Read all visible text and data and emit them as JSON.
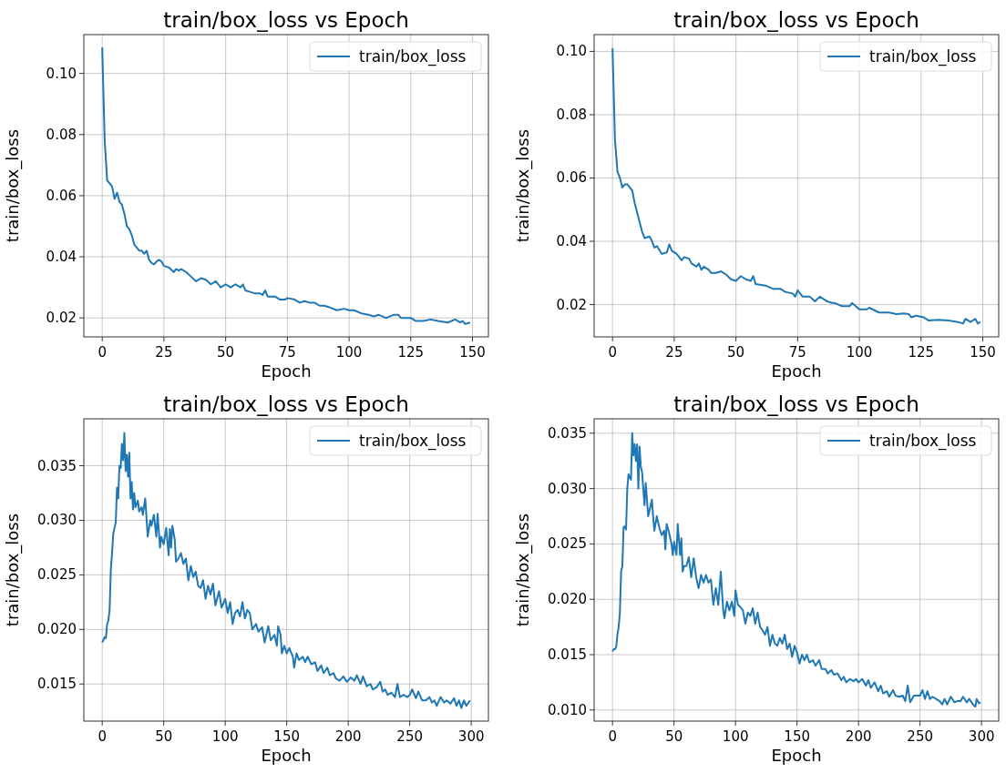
{
  "chart_data": [
    {
      "type": "line",
      "title": "train/box_loss vs Epoch",
      "xlabel": "Epoch",
      "ylabel": "train/box_loss",
      "grid": true,
      "legend": "top right",
      "xlim": [
        -7.45,
        156.45
      ],
      "ylim": [
        0.0138,
        0.1127
      ],
      "xticks": [
        0,
        25,
        50,
        75,
        100,
        125,
        150
      ],
      "yticks": [
        0.02,
        0.04,
        0.06,
        0.08,
        {
          "value": 0.1,
          "label": "0.10"
        }
      ],
      "x": [
        0,
        1,
        2,
        3,
        4,
        5,
        6,
        7,
        8,
        9,
        10,
        11,
        12,
        13,
        14,
        15,
        16,
        17,
        18,
        19,
        20,
        21,
        22,
        23,
        24,
        25,
        27,
        29,
        30,
        31,
        32,
        34,
        36,
        38,
        40,
        42,
        44,
        46,
        48,
        50,
        52,
        54,
        56,
        57,
        58,
        60,
        62,
        64,
        65,
        66,
        67,
        70,
        72,
        74,
        75,
        78,
        80,
        82,
        84,
        86,
        88,
        90,
        92,
        95,
        98,
        100,
        102,
        105,
        108,
        110,
        112,
        115,
        118,
        120,
        121,
        125,
        127,
        130,
        133,
        136,
        140,
        143,
        145,
        146,
        147,
        149
      ],
      "series": [
        {
          "name": "train/box_loss",
          "color": "#1f77b4",
          "values": [
            0.1085,
            0.078,
            0.065,
            0.064,
            0.063,
            0.059,
            0.061,
            0.058,
            0.057,
            0.054,
            0.05,
            0.049,
            0.047,
            0.044,
            0.043,
            0.042,
            0.042,
            0.041,
            0.042,
            0.039,
            0.038,
            0.0375,
            0.0385,
            0.039,
            0.0385,
            0.037,
            0.0365,
            0.035,
            0.036,
            0.0355,
            0.036,
            0.035,
            0.0335,
            0.032,
            0.033,
            0.0325,
            0.031,
            0.032,
            0.03,
            0.031,
            0.03,
            0.031,
            0.03,
            0.031,
            0.029,
            0.0285,
            0.028,
            0.028,
            0.0275,
            0.029,
            0.027,
            0.027,
            0.026,
            0.026,
            0.0265,
            0.026,
            0.025,
            0.0255,
            0.025,
            0.025,
            0.024,
            0.024,
            0.0235,
            0.0225,
            0.023,
            0.0225,
            0.0225,
            0.0215,
            0.021,
            0.0205,
            0.021,
            0.02,
            0.021,
            0.021,
            0.02,
            0.02,
            0.019,
            0.019,
            0.0195,
            0.019,
            0.0185,
            0.0195,
            0.0185,
            0.019,
            0.018,
            0.0185
          ]
        }
      ]
    },
    {
      "type": "line",
      "title": "train/box_loss vs Epoch",
      "xlabel": "Epoch",
      "ylabel": "train/box_loss",
      "grid": true,
      "legend": "top right",
      "xlim": [
        -7.45,
        156.45
      ],
      "ylim": [
        0.0098,
        0.1053
      ],
      "xticks": [
        0,
        25,
        50,
        75,
        100,
        125,
        150
      ],
      "yticks": [
        0.02,
        0.04,
        0.06,
        0.08,
        {
          "value": 0.1,
          "label": "0.10"
        }
      ],
      "x": [
        0,
        1,
        2,
        3,
        4,
        5,
        6,
        8,
        9,
        10,
        11,
        12,
        13,
        15,
        16,
        17,
        18,
        20,
        22,
        23,
        24,
        26,
        28,
        29,
        31,
        32,
        34,
        35,
        36,
        37,
        39,
        40,
        42,
        44,
        46,
        48,
        50,
        52,
        54,
        56,
        57,
        58,
        62,
        65,
        68,
        70,
        73,
        74,
        75,
        77,
        80,
        82,
        84,
        87,
        89,
        90,
        93,
        96,
        97,
        100,
        103,
        104,
        108,
        112,
        115,
        118,
        120,
        121,
        123,
        126,
        128,
        132,
        136,
        140,
        142,
        143,
        145,
        147,
        148,
        149
      ],
      "series": [
        {
          "name": "train/box_loss",
          "color": "#1f77b4",
          "values": [
            0.101,
            0.072,
            0.062,
            0.06,
            0.057,
            0.058,
            0.058,
            0.056,
            0.052,
            0.049,
            0.046,
            0.043,
            0.041,
            0.0415,
            0.04,
            0.038,
            0.0385,
            0.036,
            0.0365,
            0.039,
            0.037,
            0.036,
            0.034,
            0.035,
            0.0345,
            0.033,
            0.032,
            0.033,
            0.031,
            0.032,
            0.031,
            0.03,
            0.03,
            0.0305,
            0.0295,
            0.028,
            0.0275,
            0.029,
            0.028,
            0.0275,
            0.029,
            0.0265,
            0.026,
            0.025,
            0.025,
            0.024,
            0.0235,
            0.0225,
            0.0245,
            0.0225,
            0.0225,
            0.021,
            0.0225,
            0.021,
            0.0205,
            0.0205,
            0.0195,
            0.0195,
            0.0205,
            0.0185,
            0.0185,
            0.019,
            0.0175,
            0.0175,
            0.017,
            0.0172,
            0.017,
            0.016,
            0.0165,
            0.016,
            0.015,
            0.0152,
            0.015,
            0.0145,
            0.014,
            0.0155,
            0.0145,
            0.0155,
            0.014,
            0.0145
          ]
        }
      ]
    },
    {
      "type": "line",
      "title": "train/box_loss vs Epoch",
      "xlabel": "Epoch",
      "ylabel": "train/box_loss",
      "grid": true,
      "legend": "top right",
      "xlim": [
        -14.95,
        313.95
      ],
      "ylim": [
        0.0116,
        0.0393
      ],
      "xticks": [
        0,
        50,
        100,
        150,
        200,
        250,
        300
      ],
      "yticks": [
        0.015,
        {
          "value": 0.02,
          "label": "0.020"
        },
        0.025,
        {
          "value": 0.03,
          "label": "0.030"
        },
        0.035
      ],
      "x": [
        0,
        2,
        3,
        4,
        5,
        6,
        7,
        8,
        9,
        11,
        12,
        13,
        14,
        15,
        16,
        17,
        18,
        19,
        20,
        21,
        22,
        23,
        24,
        25,
        26,
        27,
        29,
        30,
        32,
        33,
        35,
        37,
        39,
        40,
        42,
        44,
        45,
        47,
        48,
        50,
        52,
        54,
        55,
        56,
        57,
        59,
        60,
        62,
        64,
        66,
        68,
        70,
        72,
        74,
        76,
        78,
        80,
        82,
        84,
        86,
        88,
        90,
        92,
        95,
        97,
        100,
        102,
        104,
        106,
        108,
        110,
        112,
        114,
        116,
        118,
        120,
        122,
        125,
        127,
        130,
        132,
        135,
        137,
        140,
        142,
        143,
        145,
        146,
        148,
        150,
        152,
        155,
        156,
        158,
        160,
        163,
        165,
        167,
        170,
        173,
        175,
        178,
        180,
        183,
        185,
        188,
        190,
        193,
        196,
        199,
        202,
        205,
        207,
        210,
        212,
        215,
        218,
        220,
        223,
        226,
        228,
        230,
        232,
        235,
        238,
        240,
        242,
        245,
        248,
        250,
        252,
        255,
        257,
        260,
        263,
        266,
        268,
        270,
        272,
        275,
        278,
        280,
        283,
        286,
        288,
        290,
        292,
        294,
        296,
        299
      ],
      "series": [
        {
          "name": "train/box_loss",
          "color": "#1f77b4",
          "values": [
            0.0188,
            0.0193,
            0.0192,
            0.0205,
            0.0208,
            0.0218,
            0.0255,
            0.027,
            0.0288,
            0.0298,
            0.033,
            0.032,
            0.035,
            0.0348,
            0.037,
            0.0355,
            0.038,
            0.0345,
            0.036,
            0.034,
            0.0362,
            0.032,
            0.0335,
            0.031,
            0.0325,
            0.0312,
            0.0318,
            0.0308,
            0.0312,
            0.0305,
            0.032,
            0.0285,
            0.03,
            0.0295,
            0.0305,
            0.0285,
            0.0306,
            0.0275,
            0.0285,
            0.0278,
            0.0293,
            0.0268,
            0.0292,
            0.0275,
            0.0295,
            0.0282,
            0.0262,
            0.0265,
            0.027,
            0.026,
            0.0265,
            0.0245,
            0.0258,
            0.0248,
            0.0253,
            0.024,
            0.0238,
            0.0245,
            0.0228,
            0.024,
            0.0232,
            0.0242,
            0.0222,
            0.0235,
            0.022,
            0.0228,
            0.0215,
            0.0225,
            0.0205,
            0.0215,
            0.0218,
            0.0212,
            0.0225,
            0.021,
            0.0218,
            0.0215,
            0.02,
            0.0205,
            0.0198,
            0.0202,
            0.0188,
            0.0203,
            0.019,
            0.0195,
            0.0185,
            0.0203,
            0.0195,
            0.0178,
            0.0185,
            0.0178,
            0.0183,
            0.0175,
            0.0165,
            0.0178,
            0.0172,
            0.0175,
            0.017,
            0.0175,
            0.0168,
            0.017,
            0.0162,
            0.0167,
            0.016,
            0.0165,
            0.0158,
            0.016,
            0.0155,
            0.0153,
            0.0157,
            0.0152,
            0.0156,
            0.0153,
            0.0158,
            0.015,
            0.0157,
            0.0148,
            0.015,
            0.0145,
            0.0147,
            0.0152,
            0.0143,
            0.0145,
            0.014,
            0.0142,
            0.0138,
            0.015,
            0.0138,
            0.014,
            0.0138,
            0.014,
            0.0145,
            0.0137,
            0.0143,
            0.0135,
            0.0135,
            0.0138,
            0.0133,
            0.0135,
            0.013,
            0.0138,
            0.0133,
            0.0135,
            0.0132,
            0.0137,
            0.013,
            0.0135,
            0.0128,
            0.0135,
            0.013,
            0.0135
          ]
        }
      ]
    },
    {
      "type": "line",
      "title": "train/box_loss vs Epoch",
      "xlabel": "Epoch",
      "ylabel": "train/box_loss",
      "grid": true,
      "legend": "top right",
      "xlim": [
        -14.95,
        313.95
      ],
      "ylim": [
        0.009,
        0.0363
      ],
      "xticks": [
        0,
        50,
        100,
        150,
        200,
        250,
        300
      ],
      "yticks": [
        {
          "value": 0.01,
          "label": "0.010"
        },
        0.015,
        {
          "value": 0.02,
          "label": "0.020"
        },
        0.025,
        {
          "value": 0.03,
          "label": "0.030"
        },
        0.035
      ],
      "x": [
        0,
        1,
        2,
        3,
        4,
        5,
        6,
        7,
        8,
        9,
        10,
        11,
        12,
        13,
        14,
        15,
        16,
        17,
        18,
        19,
        20,
        21,
        22,
        23,
        24,
        26,
        27,
        29,
        30,
        32,
        33,
        34,
        36,
        38,
        40,
        42,
        43,
        44,
        46,
        48,
        49,
        50,
        52,
        53,
        55,
        56,
        57,
        58,
        60,
        62,
        64,
        66,
        68,
        70,
        72,
        74,
        76,
        78,
        80,
        82,
        84,
        86,
        88,
        90,
        91,
        93,
        95,
        97,
        99,
        100,
        102,
        104,
        106,
        108,
        110,
        112,
        114,
        116,
        118,
        120,
        122,
        124,
        126,
        128,
        130,
        132,
        134,
        136,
        138,
        140,
        142,
        144,
        146,
        148,
        150,
        152,
        154,
        156,
        158,
        160,
        163,
        165,
        168,
        170,
        173,
        175,
        178,
        180,
        183,
        186,
        188,
        190,
        193,
        196,
        198,
        200,
        203,
        206,
        208,
        210,
        213,
        216,
        218,
        220,
        223,
        225,
        228,
        230,
        233,
        236,
        238,
        240,
        242,
        245,
        248,
        250,
        252,
        254,
        256,
        258,
        260,
        263,
        266,
        268,
        270,
        272,
        275,
        278,
        280,
        283,
        285,
        288,
        290,
        293,
        295,
        296,
        298,
        299
      ],
      "series": [
        {
          "name": "train/box_loss",
          "color": "#1f77b4",
          "values": [
            0.0153,
            0.0155,
            0.0155,
            0.0157,
            0.0168,
            0.0175,
            0.0188,
            0.0225,
            0.023,
            0.0265,
            0.0266,
            0.0263,
            0.03,
            0.0313,
            0.031,
            0.0308,
            0.035,
            0.033,
            0.034,
            0.0325,
            0.034,
            0.03,
            0.0338,
            0.032,
            0.0315,
            0.0285,
            0.0305,
            0.0275,
            0.028,
            0.029,
            0.0275,
            0.0262,
            0.0275,
            0.0265,
            0.0258,
            0.0262,
            0.0245,
            0.0268,
            0.026,
            0.025,
            0.024,
            0.0252,
            0.024,
            0.0268,
            0.024,
            0.0255,
            0.0225,
            0.023,
            0.023,
            0.0238,
            0.022,
            0.0237,
            0.022,
            0.021,
            0.0222,
            0.0215,
            0.0222,
            0.0215,
            0.0218,
            0.0195,
            0.021,
            0.0195,
            0.0225,
            0.019,
            0.0183,
            0.0198,
            0.019,
            0.0198,
            0.0185,
            0.0208,
            0.0195,
            0.0193,
            0.019,
            0.0178,
            0.0188,
            0.0185,
            0.0192,
            0.0178,
            0.0188,
            0.0175,
            0.0172,
            0.0168,
            0.0175,
            0.0158,
            0.0168,
            0.016,
            0.0158,
            0.0165,
            0.016,
            0.0168,
            0.0155,
            0.016,
            0.0148,
            0.0158,
            0.0152,
            0.0142,
            0.015,
            0.0145,
            0.015,
            0.0143,
            0.0145,
            0.014,
            0.0145,
            0.0137,
            0.0137,
            0.0133,
            0.0136,
            0.0132,
            0.0133,
            0.0127,
            0.013,
            0.0125,
            0.0128,
            0.0126,
            0.0128,
            0.0125,
            0.0128,
            0.0122,
            0.0127,
            0.012,
            0.0125,
            0.0117,
            0.0122,
            0.0115,
            0.0117,
            0.0112,
            0.0118,
            0.0113,
            0.0112,
            0.0113,
            0.0108,
            0.0122,
            0.0107,
            0.0113,
            0.0113,
            0.0113,
            0.0118,
            0.011,
            0.0117,
            0.011,
            0.0112,
            0.011,
            0.0108,
            0.0105,
            0.011,
            0.0105,
            0.0112,
            0.0107,
            0.0108,
            0.0108,
            0.0112,
            0.0107,
            0.011,
            0.0105,
            0.0103,
            0.011,
            0.0106,
            0.0107
          ]
        }
      ]
    }
  ]
}
